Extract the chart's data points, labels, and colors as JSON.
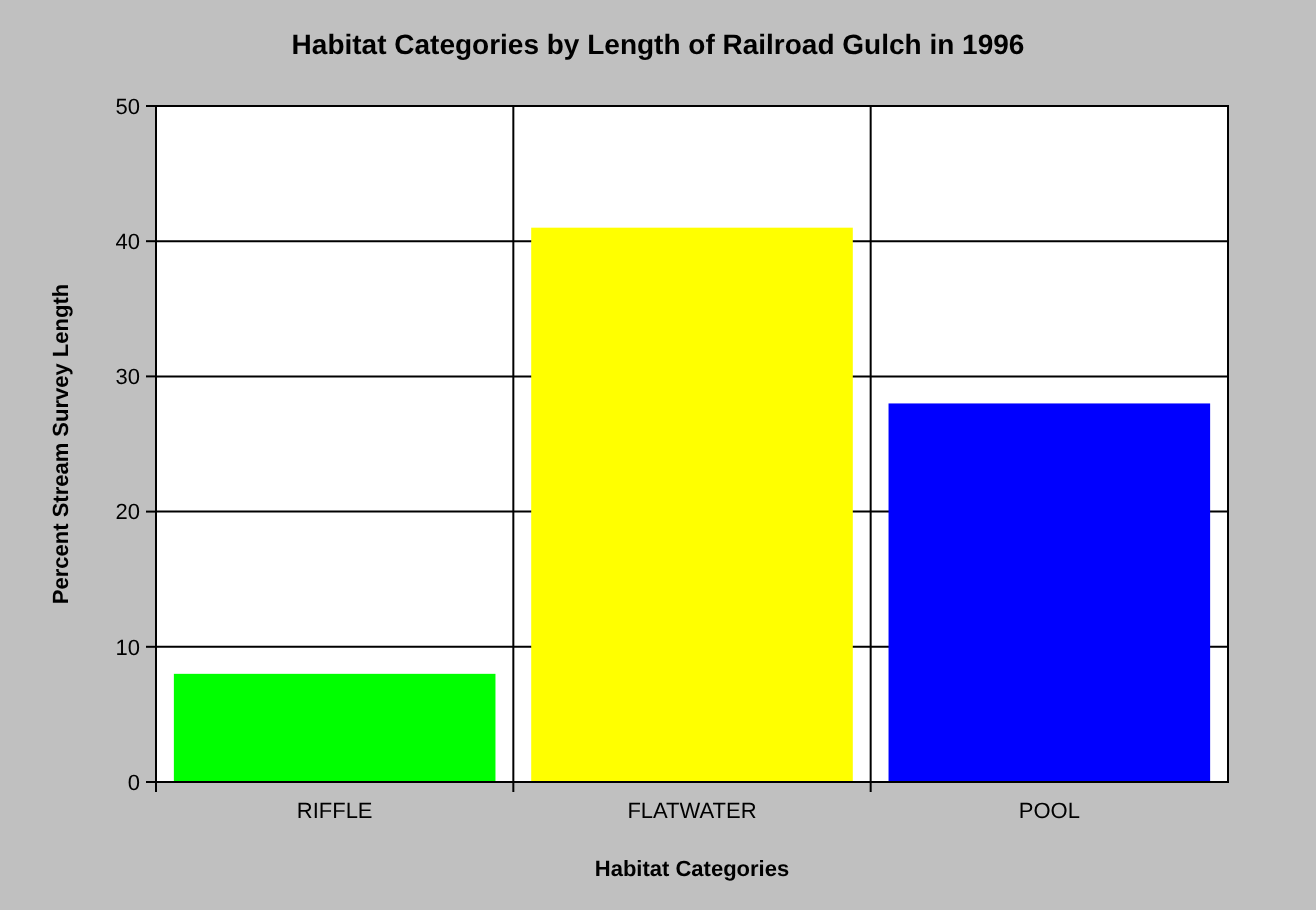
{
  "chart_data": {
    "type": "bar",
    "title": "Habitat Categories by Length of Railroad Gulch in 1996",
    "xlabel": "Habitat Categories",
    "ylabel": "Percent Stream Survey Length",
    "categories": [
      "RIFFLE",
      "FLATWATER",
      "POOL"
    ],
    "values": [
      8,
      41,
      28
    ],
    "colors": [
      "#00ff00",
      "#ffff00",
      "#0000ff"
    ],
    "ylim": [
      0,
      50
    ],
    "yticks": [
      0,
      10,
      20,
      30,
      40,
      50
    ],
    "grid": true
  }
}
